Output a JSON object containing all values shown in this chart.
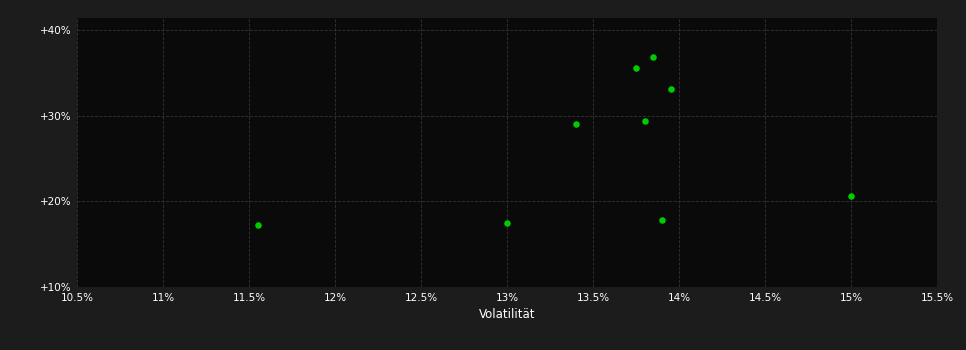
{
  "xlabel": "Volatilität",
  "background_color": "#1c1c1c",
  "plot_bg_color": "#0a0a0a",
  "grid_color": "#333333",
  "text_color": "#ffffff",
  "dot_color": "#00cc00",
  "xlim": [
    0.105,
    0.155
  ],
  "ylim": [
    0.1,
    0.415
  ],
  "xticks": [
    0.105,
    0.11,
    0.115,
    0.12,
    0.125,
    0.13,
    0.135,
    0.14,
    0.145,
    0.15,
    0.155
  ],
  "yticks": [
    0.1,
    0.2,
    0.3,
    0.4
  ],
  "ytick_labels": [
    "+10%",
    "+20%",
    "+30%",
    "+40%"
  ],
  "xtick_labels": [
    "10.5%",
    "11%",
    "11.5%",
    "12%",
    "12.5%",
    "13%",
    "13.5%",
    "14%",
    "14.5%",
    "15%",
    "15.5%"
  ],
  "points_x": [
    0.1155,
    0.13,
    0.134,
    0.1375,
    0.1385,
    0.138,
    0.1395,
    0.139,
    0.15
  ],
  "points_y": [
    0.172,
    0.175,
    0.291,
    0.356,
    0.369,
    0.294,
    0.332,
    0.178,
    0.206
  ]
}
